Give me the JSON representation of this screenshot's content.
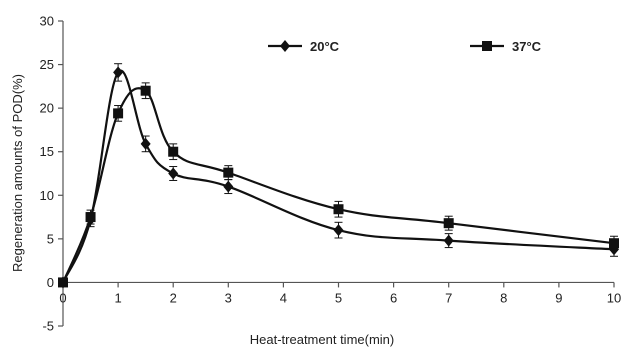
{
  "chart_data": {
    "type": "line",
    "title": "",
    "xlabel": "Heat-treatment time(min)",
    "ylabel": "Regeneration amounts of POD(%)",
    "xlim": [
      0,
      10
    ],
    "ylim": [
      -5,
      30
    ],
    "x_ticks": [
      0,
      1,
      2,
      3,
      4,
      5,
      6,
      7,
      8,
      9,
      10
    ],
    "y_ticks": [
      -5,
      0,
      5,
      10,
      15,
      20,
      25,
      30
    ],
    "grid": false,
    "legend_position": "top",
    "series": [
      {
        "name": "20°C",
        "marker": "diamond",
        "color": "#111111",
        "points": [
          {
            "x": 0,
            "y": 0,
            "err": 0
          },
          {
            "x": 0.5,
            "y": 7.2,
            "err": 0.8
          },
          {
            "x": 1,
            "y": 24.1,
            "err": 1.0
          },
          {
            "x": 1.5,
            "y": 15.9,
            "err": 0.9
          },
          {
            "x": 2,
            "y": 12.5,
            "err": 0.8
          },
          {
            "x": 3,
            "y": 11.0,
            "err": 0.8
          },
          {
            "x": 5,
            "y": 6.0,
            "err": 0.9
          },
          {
            "x": 7,
            "y": 4.8,
            "err": 0.8
          },
          {
            "x": 10,
            "y": 3.8,
            "err": 0.8
          }
        ]
      },
      {
        "name": "37°C",
        "marker": "square",
        "color": "#111111",
        "points": [
          {
            "x": 0,
            "y": 0,
            "err": 0
          },
          {
            "x": 0.5,
            "y": 7.5,
            "err": 0.8
          },
          {
            "x": 1,
            "y": 19.4,
            "err": 0.9
          },
          {
            "x": 1.5,
            "y": 22.0,
            "err": 0.9
          },
          {
            "x": 2,
            "y": 15.0,
            "err": 0.9
          },
          {
            "x": 3,
            "y": 12.6,
            "err": 0.8
          },
          {
            "x": 5,
            "y": 8.4,
            "err": 0.9
          },
          {
            "x": 7,
            "y": 6.8,
            "err": 0.8
          },
          {
            "x": 10,
            "y": 4.5,
            "err": 0.8
          }
        ]
      }
    ]
  }
}
